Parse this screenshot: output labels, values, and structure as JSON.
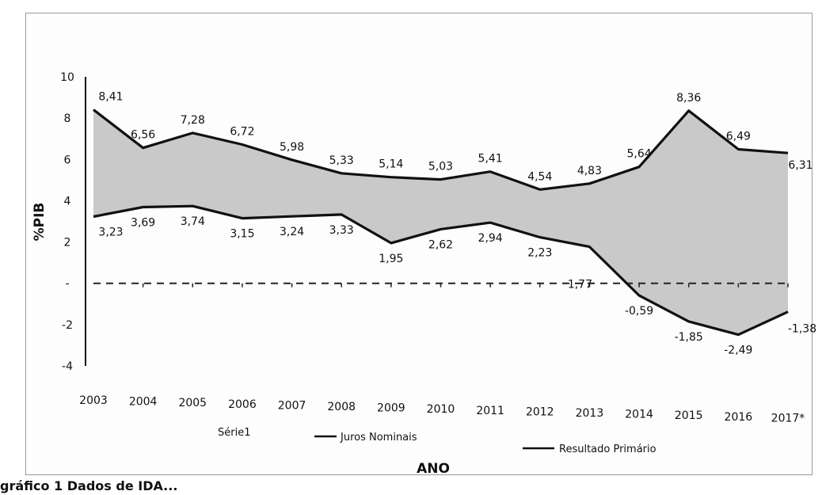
{
  "caption": "gráfico 1 Dados de IDA...",
  "chart_data": {
    "type": "line",
    "ylabel": "%PIB",
    "xlabel": "ANO",
    "ylim": [
      -4,
      10
    ],
    "y_ticks": [
      "10",
      "8",
      "6",
      "4",
      "2",
      "-",
      "-2",
      "-4"
    ],
    "y_tick_values": [
      10,
      8,
      6,
      4,
      2,
      0,
      -2,
      -4
    ],
    "categories": [
      "2003",
      "2004",
      "2005",
      "2006",
      "2007",
      "2008",
      "2009",
      "2010",
      "2011",
      "2012",
      "2013",
      "2014",
      "2015",
      "2016",
      "2017*"
    ],
    "series": [
      {
        "name": "Juros Nominais",
        "values": [
          8.41,
          6.56,
          7.28,
          6.72,
          5.98,
          5.33,
          5.14,
          5.03,
          5.41,
          4.54,
          4.83,
          5.64,
          8.36,
          6.49,
          6.31
        ],
        "labels": [
          "8,41",
          "6,56",
          "7,28",
          "6,72",
          "5,98",
          "5,33",
          "5,14",
          "5,03",
          "5,41",
          "4,54",
          "4,83",
          "5,64",
          "8,36",
          "6,49",
          "6,31"
        ]
      },
      {
        "name": "Resultado Primário",
        "values": [
          3.23,
          3.69,
          3.74,
          3.15,
          3.24,
          3.33,
          1.95,
          2.62,
          2.94,
          2.23,
          1.77,
          -0.59,
          -1.85,
          -2.49,
          -1.38
        ],
        "labels": [
          "3,23",
          "3,69",
          "3,74",
          "3,15",
          "3,24",
          "3,33",
          "1,95",
          "2,62",
          "2,94",
          "2,23",
          "1,77",
          "-0,59",
          "-1,85",
          "-2,49",
          "-1,38"
        ]
      }
    ],
    "legend": {
      "placement": "bottom",
      "entries": [
        "Série1",
        "Juros Nominais",
        "Resultado Primário"
      ]
    },
    "colors": {
      "line": "#111111",
      "area": "#c9c9c9",
      "dashed": "#222222"
    }
  }
}
